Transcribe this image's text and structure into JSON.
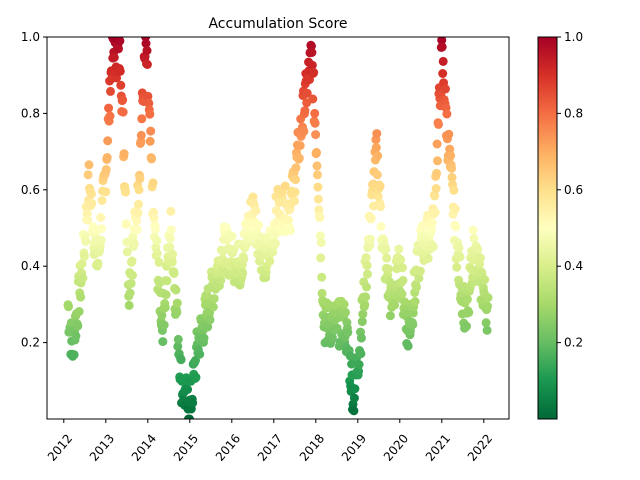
{
  "chart_data": {
    "type": "scatter",
    "title": "Accumulation Score",
    "xlabel": "",
    "ylabel": "",
    "xlim": [
      2011.6,
      2022.6
    ],
    "ylim": [
      0.0,
      1.0
    ],
    "x_ticks": [
      "2012",
      "2013",
      "2014",
      "2015",
      "2016",
      "2017",
      "2018",
      "2019",
      "2020",
      "2021",
      "2022"
    ],
    "y_ticks": [
      "0.2",
      "0.4",
      "0.6",
      "0.8",
      "1.0"
    ],
    "colorbar": {
      "colormap": "RdYlGn_r",
      "range": [
        0.0,
        1.0
      ],
      "ticks": [
        "0.2",
        "0.4",
        "0.6",
        "0.8",
        "1.0"
      ]
    },
    "grid": false,
    "legend": "none",
    "series": [
      {
        "x_start": 2012.1,
        "x_end": 2022.1,
        "keyframes": [
          [
            2012.1,
            0.3
          ],
          [
            2012.2,
            0.18
          ],
          [
            2012.45,
            0.4
          ],
          [
            2012.6,
            0.62
          ],
          [
            2012.8,
            0.4
          ],
          [
            2013.0,
            0.65
          ],
          [
            2013.15,
            0.95
          ],
          [
            2013.35,
            0.95
          ],
          [
            2013.55,
            0.35
          ],
          [
            2013.75,
            0.55
          ],
          [
            2013.95,
            0.98
          ],
          [
            2014.15,
            0.5
          ],
          [
            2014.35,
            0.25
          ],
          [
            2014.55,
            0.5
          ],
          [
            2014.8,
            0.1
          ],
          [
            2015.0,
            0.02
          ],
          [
            2015.2,
            0.2
          ],
          [
            2015.45,
            0.3
          ],
          [
            2015.8,
            0.45
          ],
          [
            2016.2,
            0.4
          ],
          [
            2016.5,
            0.55
          ],
          [
            2016.8,
            0.4
          ],
          [
            2017.1,
            0.55
          ],
          [
            2017.4,
            0.55
          ],
          [
            2017.7,
            0.8
          ],
          [
            2017.9,
            0.95
          ],
          [
            2018.05,
            0.65
          ],
          [
            2018.2,
            0.25
          ],
          [
            2018.45,
            0.25
          ],
          [
            2018.7,
            0.25
          ],
          [
            2018.9,
            0.06
          ],
          [
            2019.05,
            0.2
          ],
          [
            2019.25,
            0.45
          ],
          [
            2019.45,
            0.7
          ],
          [
            2019.6,
            0.45
          ],
          [
            2019.8,
            0.3
          ],
          [
            2020.0,
            0.4
          ],
          [
            2020.2,
            0.22
          ],
          [
            2020.5,
            0.45
          ],
          [
            2020.8,
            0.5
          ],
          [
            2021.0,
            0.95
          ],
          [
            2021.2,
            0.65
          ],
          [
            2021.4,
            0.4
          ],
          [
            2021.6,
            0.25
          ],
          [
            2021.75,
            0.45
          ],
          [
            2022.1,
            0.28
          ]
        ]
      }
    ]
  }
}
